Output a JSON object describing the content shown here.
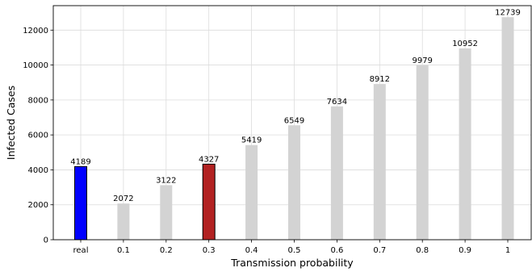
{
  "chart_data": {
    "type": "bar",
    "title": "",
    "xlabel": "Transmission probability",
    "ylabel": "Infected Cases",
    "categories": [
      "real",
      "0.1",
      "0.2",
      "0.3",
      "0.4",
      "0.5",
      "0.6",
      "0.7",
      "0.8",
      "0.9",
      "1"
    ],
    "values": [
      4189,
      2072,
      3122,
      4327,
      5419,
      6549,
      7634,
      8912,
      9979,
      10952,
      12739
    ],
    "bar_colors": [
      "#0000ff",
      "#d3d3d3",
      "#d3d3d3",
      "#b22222",
      "#d3d3d3",
      "#d3d3d3",
      "#d3d3d3",
      "#d3d3d3",
      "#d3d3d3",
      "#d3d3d3",
      "#d3d3d3"
    ],
    "bar_edge_colors": [
      "#000000",
      "none",
      "none",
      "#000000",
      "none",
      "none",
      "none",
      "none",
      "none",
      "none",
      "none"
    ],
    "ylim": [
      0,
      13400
    ],
    "yticks": [
      0,
      2000,
      4000,
      6000,
      8000,
      10000,
      12000
    ],
    "grid": true,
    "show_data_labels": true
  }
}
